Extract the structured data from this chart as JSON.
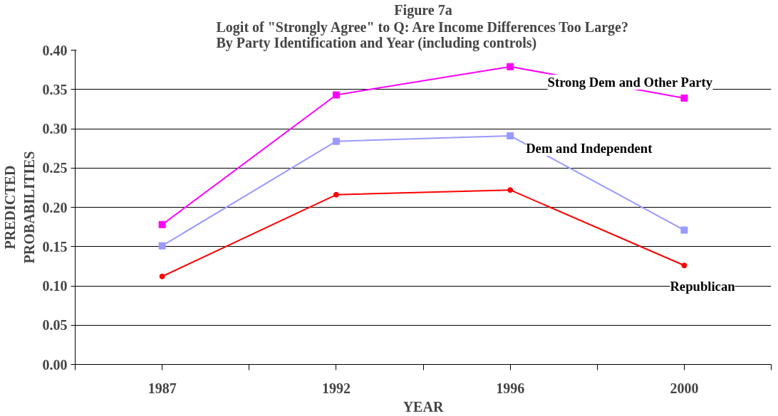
{
  "chart_data": {
    "type": "line",
    "title": "Figure 7a",
    "subtitle": "Logit of \"Strongly Agree\" to Q: Are Income Differences Too Large?\nBy Party Identification and Year (including controls)",
    "xlabel": "YEAR",
    "ylabel": "PREDICTED\nPROBABILITIES",
    "categories": [
      "1987",
      "1992",
      "1996",
      "2000"
    ],
    "series": [
      {
        "name": "Strong Dem and Other Party",
        "color": "#ff00ff",
        "marker": "square",
        "values": [
          0.178,
          0.343,
          0.379,
          0.339
        ]
      },
      {
        "name": "Dem and Independent",
        "color": "#9999ff",
        "marker": "square",
        "values": [
          0.151,
          0.284,
          0.291,
          0.171
        ]
      },
      {
        "name": "Republican",
        "color": "#ff0000",
        "marker": "circle",
        "values": [
          0.112,
          0.216,
          0.222,
          0.126
        ]
      }
    ],
    "ylim": [
      0,
      0.4
    ],
    "yticks": [
      {
        "value": 0,
        "label": "0.00"
      },
      {
        "value": 0.05,
        "label": "0.05"
      },
      {
        "value": 0.1,
        "label": "0.10"
      },
      {
        "value": 0.15,
        "label": "0.15"
      },
      {
        "value": 0.2,
        "label": "0.20"
      },
      {
        "value": 0.25,
        "label": "0.25"
      },
      {
        "value": 0.3,
        "label": "0.30"
      },
      {
        "value": 0.35,
        "label": "0.35"
      },
      {
        "value": 0.4,
        "label": "0.40"
      }
    ],
    "grid": "y"
  }
}
